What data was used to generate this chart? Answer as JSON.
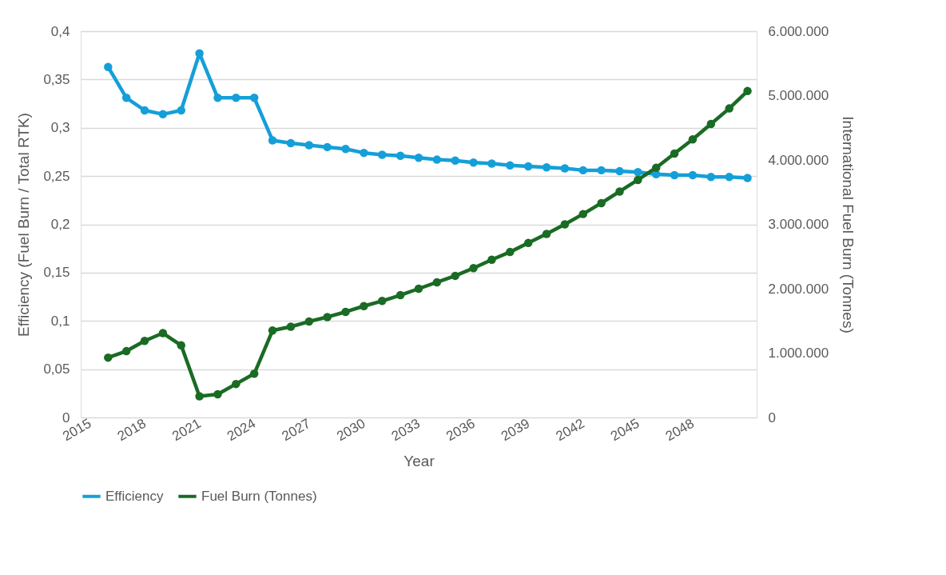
{
  "chart_data": {
    "type": "line",
    "xlabel": "Year",
    "ylabel": "Efficiency (Fuel Burn / Total RTK)",
    "y2label": "International Fuel Burn (Tonnes)",
    "x": [
      2016,
      2017,
      2018,
      2019,
      2020,
      2021,
      2022,
      2023,
      2024,
      2025,
      2026,
      2027,
      2028,
      2029,
      2030,
      2031,
      2032,
      2033,
      2034,
      2035,
      2036,
      2037,
      2038,
      2039,
      2040,
      2041,
      2042,
      2043,
      2044,
      2045,
      2046,
      2047,
      2048,
      2049,
      2050,
      2051
    ],
    "series": [
      {
        "name": "Efficiency",
        "color": "#159fd8",
        "values": [
          0.363,
          0.331,
          0.318,
          0.314,
          0.318,
          0.377,
          0.331,
          0.331,
          0.331,
          0.287,
          0.284,
          0.282,
          0.28,
          0.278,
          0.274,
          0.272,
          0.271,
          0.269,
          0.267,
          0.266,
          0.264,
          0.263,
          0.261,
          0.26,
          0.259,
          0.258,
          0.256,
          0.256,
          0.255,
          0.254,
          0.252,
          0.251,
          0.251,
          0.249,
          0.249,
          0.248
        ]
      },
      {
        "name": "Fuel Burn (Tonnes)",
        "color": "#1a6b24",
        "axis": "y2",
        "values": [
          930000,
          1030000,
          1190000,
          1310000,
          1120000,
          330000,
          360000,
          520000,
          680000,
          1350000,
          1410000,
          1490000,
          1560000,
          1640000,
          1730000,
          1810000,
          1900000,
          2000000,
          2100000,
          2200000,
          2320000,
          2450000,
          2570000,
          2710000,
          2850000,
          3000000,
          3160000,
          3330000,
          3510000,
          3690000,
          3880000,
          4100000,
          4320000,
          4560000,
          4800000,
          5070000
        ]
      }
    ],
    "xlim": [
      2014.5,
      2051.5
    ],
    "xticks": [
      2015,
      2018,
      2021,
      2024,
      2027,
      2030,
      2033,
      2036,
      2039,
      2042,
      2045,
      2048
    ],
    "ylim": [
      0,
      0.4
    ],
    "yticks": [
      0,
      {
        "value": 0.05,
        "label": "0,05"
      },
      {
        "value": 0.1,
        "label": "0,1"
      },
      {
        "value": 0.15,
        "label": "0,15"
      },
      {
        "value": 0.2,
        "label": "0,2"
      },
      {
        "value": 0.25,
        "label": "0,25"
      },
      {
        "value": 0.3,
        "label": "0,3"
      },
      {
        "value": 0.35,
        "label": "0,35"
      },
      {
        "value": 0.4,
        "label": "0,4"
      }
    ],
    "y2lim": [
      0,
      6000000
    ],
    "y2ticks": [
      0,
      {
        "value": 1000000,
        "label": "1.000.000"
      },
      {
        "value": 2000000,
        "label": "2.000.000"
      },
      {
        "value": 3000000,
        "label": "3.000.000"
      },
      {
        "value": 4000000,
        "label": "4.000.000"
      },
      {
        "value": 5000000,
        "label": "5.000.000"
      },
      {
        "value": 6000000,
        "label": "6.000.000"
      }
    ],
    "grid": "y",
    "legend": "bottom",
    "marker": "circle",
    "line_style": "solid"
  }
}
